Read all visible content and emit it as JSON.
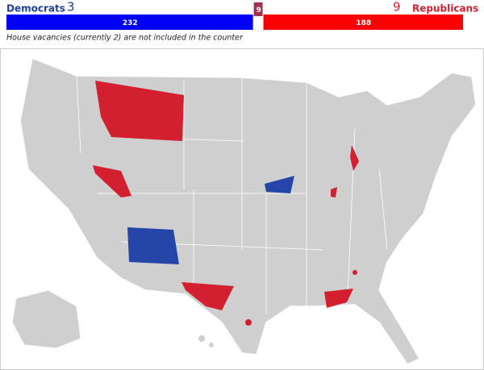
{
  "header": {
    "dem_label": "Democrats",
    "dem_count": 3,
    "rep_count": 9,
    "rep_label": "Republicans",
    "dem_seats": 232,
    "tossup": 9,
    "rep_seats": 188,
    "note": "House vacancies (currently 2) are not included in the counter"
  }
}
